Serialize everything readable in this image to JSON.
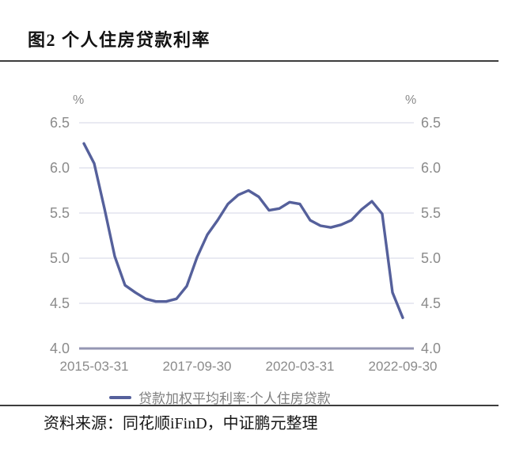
{
  "figure": {
    "title": "图2 个人住房贷款利率",
    "source": "资料来源：同花顺iFinD，中证鹏元整理"
  },
  "colors": {
    "series_line": "#55609b",
    "gridline": "#e2e3ed",
    "axis_line": "#9496b3",
    "tick_text": "#8b8b8b",
    "legend_text": "#7f7f7f",
    "rule": "#3d3d3d"
  },
  "chart_data": {
    "type": "line",
    "title": "个人住房贷款利率",
    "unit": "%",
    "grid": true,
    "legend_position": "bottom",
    "ylim": [
      4.0,
      6.5
    ],
    "yticks": [
      4.0,
      4.5,
      5.0,
      5.5,
      6.0,
      6.5
    ],
    "x": [
      "2014-12-31",
      "2015-03-31",
      "2015-06-30",
      "2015-09-30",
      "2015-12-31",
      "2016-03-31",
      "2016-06-30",
      "2016-09-30",
      "2016-12-31",
      "2017-03-31",
      "2017-06-30",
      "2017-09-30",
      "2017-12-31",
      "2018-03-31",
      "2018-06-30",
      "2018-09-30",
      "2018-12-31",
      "2019-03-31",
      "2019-06-30",
      "2019-09-30",
      "2019-12-31",
      "2020-03-31",
      "2020-06-30",
      "2020-09-30",
      "2020-12-31",
      "2021-03-31",
      "2021-06-30",
      "2021-09-30",
      "2021-12-31",
      "2022-03-31",
      "2022-06-30",
      "2022-09-30"
    ],
    "xticks": [
      {
        "label": "2015-03-31",
        "index": 1
      },
      {
        "label": "2017-09-30",
        "index": 11
      },
      {
        "label": "2020-03-31",
        "index": 21
      },
      {
        "label": "2022-09-30",
        "index": 31
      }
    ],
    "series": [
      {
        "name": "贷款加权平均利率:个人住房贷款",
        "values": [
          6.27,
          6.05,
          5.55,
          5.02,
          4.7,
          4.62,
          4.55,
          4.52,
          4.52,
          4.55,
          4.69,
          5.01,
          5.26,
          5.42,
          5.6,
          5.7,
          5.75,
          5.68,
          5.53,
          5.55,
          5.62,
          5.6,
          5.42,
          5.36,
          5.34,
          5.37,
          5.42,
          5.54,
          5.63,
          5.49,
          4.62,
          4.34
        ]
      }
    ]
  }
}
